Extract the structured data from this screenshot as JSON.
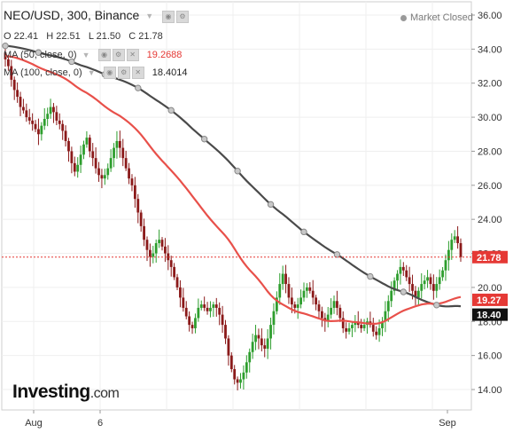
{
  "header": {
    "symbol": "NEO/USD",
    "interval": "300",
    "exchange": "Binance",
    "status": "Market Closed"
  },
  "ohlc": {
    "open_label": "O",
    "open": "22.41",
    "high_label": "H",
    "high": "22.51",
    "low_label": "L",
    "low": "21.50",
    "close_label": "C",
    "close": "21.78"
  },
  "indicators": [
    {
      "label": "MA (50, close, 0)",
      "value": "19.2688",
      "color": "#e53935"
    },
    {
      "label": "MA (100, close, 0)",
      "value": "18.4014",
      "color": "#222222"
    }
  ],
  "logo": {
    "main": "Investing",
    "suffix": ".com"
  },
  "chart_data": {
    "type": "candlestick",
    "y_ticks": [
      "36.00",
      "34.00",
      "32.00",
      "30.00",
      "28.00",
      "26.00",
      "24.00",
      "22.00",
      "20.00",
      "18.00",
      "16.00",
      "14.00"
    ],
    "ylim": [
      13.0,
      36.5
    ],
    "x_ticks": [
      "Aug",
      "6",
      "Sep"
    ],
    "price_badges": [
      {
        "label": "21.78",
        "value": 21.78,
        "color": "#e53935"
      },
      {
        "label": "19.27",
        "value": 19.27,
        "color": "#e53935"
      },
      {
        "label": "18.40",
        "value": 18.4,
        "color": "#111111"
      }
    ],
    "current_price_line": 21.78,
    "bullish_color": "#2e9e2e",
    "bearish_color": "#8b1a1a",
    "ma50_color": "#e8504a",
    "ma100_color": "#4a4a4a",
    "closes": [
      33.4,
      33.0,
      32.2,
      31.6,
      31.2,
      30.6,
      30.4,
      30.0,
      29.8,
      29.6,
      29.3,
      29.0,
      29.5,
      29.9,
      30.2,
      30.6,
      30.3,
      29.8,
      29.6,
      29.2,
      28.6,
      28.0,
      27.3,
      26.8,
      27.2,
      27.8,
      28.4,
      28.8,
      28.0,
      27.6,
      27.0,
      26.6,
      26.4,
      26.6,
      27.0,
      27.6,
      28.2,
      28.6,
      28.2,
      27.6,
      27.0,
      26.4,
      26.0,
      25.2,
      24.4,
      23.6,
      22.8,
      22.2,
      21.8,
      22.0,
      22.6,
      22.8,
      22.4,
      22.0,
      21.6,
      21.2,
      20.6,
      20.0,
      19.4,
      18.8,
      18.3,
      17.8,
      17.6,
      18.2,
      18.8,
      19.0,
      18.8,
      18.6,
      18.8,
      19.0,
      18.8,
      18.4,
      17.8,
      17.0,
      16.0,
      15.2,
      14.6,
      14.4,
      14.6,
      15.0,
      15.6,
      16.2,
      16.8,
      17.2,
      17.0,
      16.6,
      16.4,
      17.0,
      17.8,
      18.6,
      19.4,
      20.2,
      20.8,
      20.2,
      19.4,
      19.0,
      18.8,
      19.0,
      19.4,
      19.8,
      20.0,
      19.8,
      19.4,
      19.0,
      18.6,
      18.2,
      18.0,
      18.4,
      18.8,
      19.2,
      18.8,
      18.2,
      17.6,
      17.4,
      17.6,
      17.8,
      18.0,
      17.8,
      17.6,
      17.8,
      18.0,
      17.8,
      17.4,
      17.2,
      17.6,
      18.0,
      18.6,
      19.2,
      19.8,
      20.4,
      20.8,
      21.2,
      21.0,
      20.6,
      20.2,
      19.8,
      19.4,
      19.8,
      20.2,
      20.4,
      20.6,
      20.2,
      19.8,
      20.2,
      20.6,
      21.0,
      21.6,
      22.2,
      22.8,
      23.0,
      22.6,
      21.78
    ]
  }
}
